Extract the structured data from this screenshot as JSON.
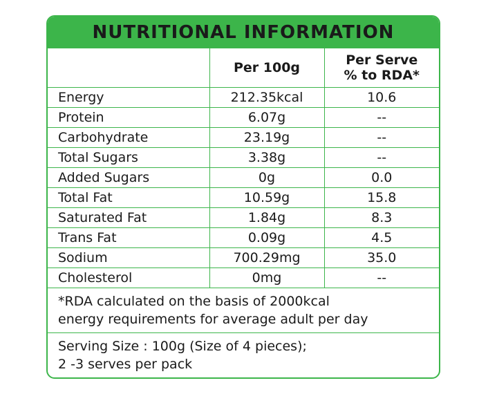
{
  "title": "NUTRITIONAL INFORMATION",
  "columns": {
    "per_100g": "Per 100g",
    "per_serve_line1": "Per Serve",
    "per_serve_line2": "% to RDA*"
  },
  "rows": [
    {
      "nutrient": "Energy",
      "per_100g": "212.35kcal",
      "rda": "10.6"
    },
    {
      "nutrient": "Protein",
      "per_100g": "6.07g",
      "rda": "--"
    },
    {
      "nutrient": "Carbohydrate",
      "per_100g": "23.19g",
      "rda": "--"
    },
    {
      "nutrient": "Total Sugars",
      "per_100g": "3.38g",
      "rda": "--"
    },
    {
      "nutrient": "Added Sugars",
      "per_100g": "0g",
      "rda": "0.0"
    },
    {
      "nutrient": "Total Fat",
      "per_100g": "10.59g",
      "rda": "15.8"
    },
    {
      "nutrient": "Saturated Fat",
      "per_100g": "1.84g",
      "rda": "8.3"
    },
    {
      "nutrient": "Trans Fat",
      "per_100g": "0.09g",
      "rda": "4.5"
    },
    {
      "nutrient": "Sodium",
      "per_100g": "700.29mg",
      "rda": "35.0"
    },
    {
      "nutrient": "Cholesterol",
      "per_100g": "0mg",
      "rda": "--"
    }
  ],
  "footnote": {
    "line1": "*RDA calculated on the basis of 2000kcal",
    "line2": "energy requirements for average adult per day"
  },
  "serving": {
    "line1": "Serving Size : 100g (Size of 4 pieces);",
    "line2": "2 -3 serves per pack"
  },
  "colors": {
    "accent_green": "#3cb54a",
    "text": "#1a1a1a"
  }
}
